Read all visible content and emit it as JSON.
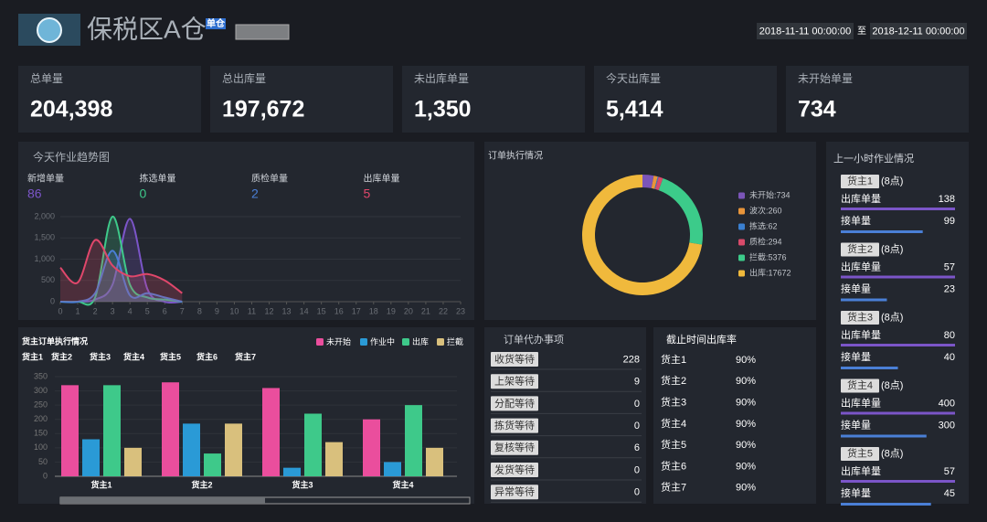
{
  "header": {
    "title": "保税区A仓",
    "badge": "单仓",
    "date_from": "2018-11-11 00:00:00",
    "date_sep": "至",
    "date_to": "2018-12-11 00:00:00"
  },
  "kpis": [
    {
      "label": "总单量",
      "value": "204,398"
    },
    {
      "label": "总出库量",
      "value": "197,672"
    },
    {
      "label": "未出库单量",
      "value": "1,350"
    },
    {
      "label": "今天出库量",
      "value": "5,414"
    },
    {
      "label": "未开始单量",
      "value": "734"
    }
  ],
  "chart_data": [
    {
      "type": "line",
      "title": "今天作业趋势图",
      "x": [
        0,
        1,
        2,
        3,
        4,
        5,
        6,
        7,
        8,
        9,
        10,
        11,
        12,
        13,
        14,
        15,
        16,
        17,
        18,
        19,
        20,
        21,
        22,
        23
      ],
      "xlim": [
        0,
        23
      ],
      "xticks": [
        0,
        1,
        2,
        3,
        4,
        5,
        6,
        7,
        8,
        9,
        10,
        11,
        12,
        13,
        14,
        15,
        16,
        17,
        18,
        19,
        20,
        21,
        22,
        23
      ],
      "ylim": [
        0,
        2000
      ],
      "yticks": [
        0,
        500,
        {
          "value": 1000,
          "label": "1,000"
        },
        {
          "value": 1500,
          "label": "1,500"
        },
        {
          "value": 2000,
          "label": "2,000"
        }
      ],
      "series": [
        {
          "name": "新增单量",
          "total": 86,
          "color": "#7b55c8",
          "values": [
            0,
            0,
            50,
            400,
            1950,
            300,
            0,
            0,
            null,
            null,
            null,
            null,
            null,
            null,
            null,
            null,
            null,
            null,
            null,
            null,
            null,
            null,
            null,
            null
          ]
        },
        {
          "name": "拣选单量",
          "total": 0,
          "color": "#3ec98a",
          "values": [
            0,
            0,
            100,
            2000,
            400,
            100,
            50,
            0,
            null,
            null,
            null,
            null,
            null,
            null,
            null,
            null,
            null,
            null,
            null,
            null,
            null,
            null,
            null,
            null
          ]
        },
        {
          "name": "质检单量",
          "total": 2,
          "color": "#4a7fd6",
          "values": [
            0,
            0,
            200,
            1200,
            150,
            200,
            100,
            0,
            null,
            null,
            null,
            null,
            null,
            null,
            null,
            null,
            null,
            null,
            null,
            null,
            null,
            null,
            null,
            null
          ]
        },
        {
          "name": "出库单量",
          "total": 5,
          "color": "#e0476b",
          "values": [
            800,
            450,
            1450,
            850,
            600,
            650,
            500,
            200,
            null,
            null,
            null,
            null,
            null,
            null,
            null,
            null,
            null,
            null,
            null,
            null,
            null,
            null,
            null,
            null
          ]
        }
      ]
    },
    {
      "type": "pie",
      "title": "订单执行情况",
      "values": [
        734,
        260,
        62,
        294,
        5376,
        17672
      ],
      "value_labels": [
        "未开始:734",
        "波次:260",
        "拣选:62",
        "质检:294",
        "拦截:5376",
        "出库:17672"
      ],
      "colors": [
        "#7b55b8",
        "#e8953a",
        "#3a7fd0",
        "#d84a6a",
        "#3ccb8a",
        "#f0b93c"
      ]
    },
    {
      "type": "bar",
      "title": "货主订单执行情况",
      "categories": [
        "货主1",
        "货主2",
        "货主3",
        "货主4"
      ],
      "ylim": [
        0,
        350
      ],
      "yticks": [
        0,
        50,
        100,
        150,
        200,
        250,
        300,
        350
      ],
      "series": [
        {
          "name": "未开始",
          "color": "#ea4e9d",
          "values": [
            320,
            330,
            310,
            200
          ]
        },
        {
          "name": "作业中",
          "color": "#2a9ad6",
          "values": [
            130,
            185,
            30,
            50
          ]
        },
        {
          "name": "出库",
          "color": "#3ec98a",
          "values": [
            320,
            80,
            220,
            250
          ]
        },
        {
          "name": "拦截",
          "color": "#d9c07d",
          "values": [
            100,
            185,
            120,
            100
          ]
        }
      ]
    }
  ],
  "bar_filter": [
    "货主1",
    "货主2",
    "货主3",
    "货主4",
    "货主5",
    "货主6",
    "货主7"
  ],
  "todo": {
    "title": "订单代办事项",
    "items": [
      {
        "label": "收货等待",
        "value": 228
      },
      {
        "label": "上架等待",
        "value": 9
      },
      {
        "label": "分配等待",
        "value": 0
      },
      {
        "label": "拣货等待",
        "value": 0
      },
      {
        "label": "复核等待",
        "value": 6
      },
      {
        "label": "发货等待",
        "value": 0
      },
      {
        "label": "异常等待",
        "value": 0
      }
    ]
  },
  "cutoff": {
    "title": "截止时间出库率",
    "rows": [
      {
        "owner": "货主1",
        "rate": "90%"
      },
      {
        "owner": "货主2",
        "rate": "90%"
      },
      {
        "owner": "货主3",
        "rate": "90%"
      },
      {
        "owner": "货主4",
        "rate": "90%"
      },
      {
        "owner": "货主5",
        "rate": "90%"
      },
      {
        "owner": "货主6",
        "rate": "90%"
      },
      {
        "owner": "货主7",
        "rate": "90%"
      }
    ]
  },
  "hourly": {
    "title": "上一小时作业情况",
    "out_label": "出库单量",
    "in_label": "接单量",
    "groups": [
      {
        "owner": "货主1",
        "hour": "(8点)",
        "out": 138,
        "in": 99
      },
      {
        "owner": "货主2",
        "hour": "(8点)",
        "out": 57,
        "in": 23
      },
      {
        "owner": "货主3",
        "hour": "(8点)",
        "out": 80,
        "in": 40
      },
      {
        "owner": "货主4",
        "hour": "(8点)",
        "out": 400,
        "in": 300
      },
      {
        "owner": "货主5",
        "hour": "(8点)",
        "out": 57,
        "in": 45
      }
    ]
  }
}
